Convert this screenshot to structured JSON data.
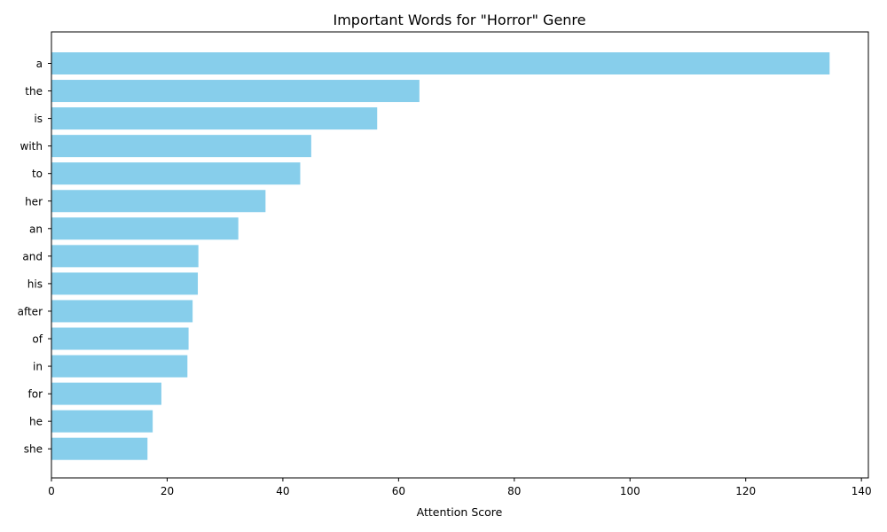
{
  "chart_data": {
    "type": "bar",
    "orientation": "horizontal",
    "title": "Important Words for \"Horror\" Genre",
    "xlabel": "Attention Score",
    "ylabel": "",
    "categories": [
      "a",
      "the",
      "is",
      "with",
      "to",
      "her",
      "an",
      "and",
      "his",
      "after",
      "of",
      "in",
      "for",
      "he",
      "she"
    ],
    "values": [
      134.5,
      63.6,
      56.3,
      44.9,
      43.0,
      37.0,
      32.3,
      25.4,
      25.3,
      24.4,
      23.7,
      23.5,
      19.0,
      17.5,
      16.6
    ],
    "xlim": [
      0,
      141.2
    ],
    "xticks": [
      0,
      20,
      40,
      60,
      80,
      100,
      120,
      140
    ],
    "grid": false,
    "colors": {
      "bar": "#87ceeb",
      "axis": "#000000"
    }
  }
}
